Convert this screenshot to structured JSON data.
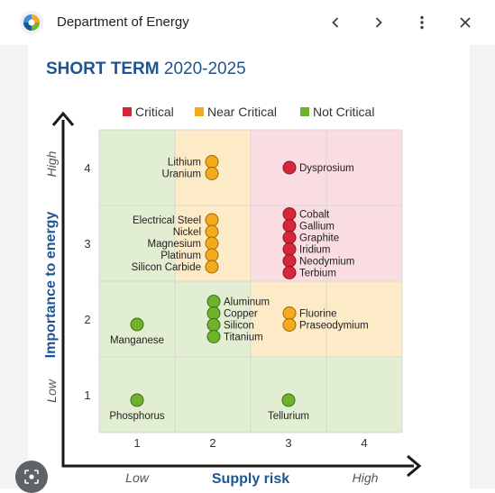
{
  "browser": {
    "site_title": "Department of Energy"
  },
  "header": {
    "term": "SHORT TERM",
    "years": "2020-2025"
  },
  "colors": {
    "critical": "#d6263a",
    "near_critical": "#f4aa1c",
    "not_critical": "#6fb22c",
    "brand": "#1c5591"
  },
  "chart_data": {
    "type": "scatter",
    "title": "SHORT TERM 2020-2025",
    "xlabel": "Supply risk",
    "ylabel": "Importance to energy",
    "x_low_label": "Low",
    "x_high_label": "High",
    "y_low_label": "Low",
    "y_high_label": "High",
    "x_ticks": [
      "1",
      "2",
      "3",
      "4"
    ],
    "y_ticks": [
      "1",
      "2",
      "3",
      "4"
    ],
    "xlim": [
      0.5,
      4.5
    ],
    "ylim": [
      0.5,
      4.5
    ],
    "legend": [
      {
        "label": "Critical",
        "category": "critical"
      },
      {
        "label": "Near Critical",
        "category": "near_critical"
      },
      {
        "label": "Not Critical",
        "category": "not_critical"
      }
    ],
    "regions": [
      {
        "x": 1,
        "y": 1,
        "category": "not_critical"
      },
      {
        "x": 2,
        "y": 1,
        "category": "not_critical"
      },
      {
        "x": 3,
        "y": 1,
        "category": "not_critical"
      },
      {
        "x": 4,
        "y": 1,
        "category": "not_critical"
      },
      {
        "x": 1,
        "y": 2,
        "category": "not_critical"
      },
      {
        "x": 2,
        "y": 2,
        "category": "not_critical"
      },
      {
        "x": 3,
        "y": 2,
        "category": "near_critical"
      },
      {
        "x": 4,
        "y": 2,
        "category": "near_critical"
      },
      {
        "x": 1,
        "y": 3,
        "category": "not_critical"
      },
      {
        "x": 2,
        "y": 3,
        "category": "near_critical"
      },
      {
        "x": 3,
        "y": 3,
        "category": "critical"
      },
      {
        "x": 4,
        "y": 3,
        "category": "critical"
      },
      {
        "x": 1,
        "y": 4,
        "category": "not_critical"
      },
      {
        "x": 2,
        "y": 4,
        "category": "near_critical"
      },
      {
        "x": 3,
        "y": 4,
        "category": "critical"
      },
      {
        "x": 4,
        "y": 4,
        "category": "critical"
      }
    ],
    "groups": [
      {
        "x": 2,
        "y": 4,
        "category": "near_critical",
        "label_side": "left",
        "materials": [
          "Lithium",
          "Uranium"
        ]
      },
      {
        "x": 3,
        "y": 4,
        "category": "critical",
        "label_side": "right",
        "materials": [
          "Dysprosium"
        ]
      },
      {
        "x": 2,
        "y": 3,
        "category": "near_critical",
        "label_side": "left",
        "materials": [
          "Electrical Steel",
          "Nickel",
          "Magnesium",
          "Platinum",
          "Silicon Carbide"
        ]
      },
      {
        "x": 3,
        "y": 3,
        "category": "critical",
        "label_side": "right",
        "materials": [
          "Cobalt",
          "Gallium",
          "Graphite",
          "Iridium",
          "Neodymium",
          "Terbium"
        ]
      },
      {
        "x": 1,
        "y": 2,
        "category": "not_critical",
        "label_side": "below",
        "materials": [
          "Manganese"
        ]
      },
      {
        "x": 2,
        "y": 2,
        "category": "not_critical",
        "label_side": "right",
        "materials": [
          "Aluminum",
          "Copper",
          "Silicon",
          "Titanium"
        ]
      },
      {
        "x": 3,
        "y": 2,
        "category": "near_critical",
        "label_side": "right",
        "materials": [
          "Fluorine",
          "Praseodymium"
        ]
      },
      {
        "x": 1,
        "y": 1,
        "category": "not_critical",
        "label_side": "below",
        "materials": [
          "Phosphorus"
        ]
      },
      {
        "x": 3,
        "y": 1,
        "category": "not_critical",
        "label_side": "below",
        "materials": [
          "Tellurium"
        ]
      }
    ]
  }
}
